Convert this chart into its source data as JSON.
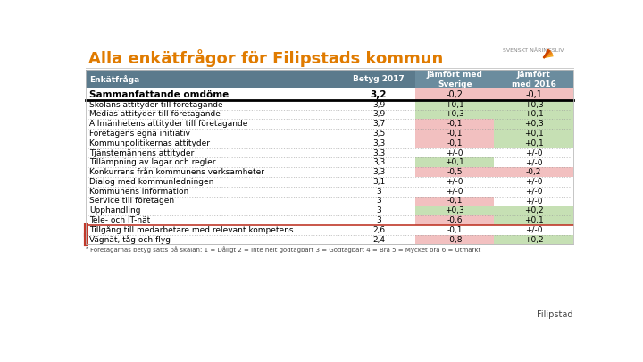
{
  "title": "Alla enkätfrågor för Filipstads kommun",
  "title_color": "#E07B00",
  "title_fontsize": 13,
  "header_bg": "#5B7A8C",
  "col1_header": "Enkätfråga",
  "col2_header": "Betyg 2017",
  "col3_header": "Jämfört med\nSverige",
  "col4_header": "Jämfört\nmed 2016",
  "summary_row": {
    "label": "Sammanfattande omdöme",
    "val1": "3,2",
    "val2": "-0,2",
    "val3": "-0,1",
    "val2_color": "#F2C0C0",
    "val3_color": "#F2C0C0"
  },
  "rows": [
    {
      "label": "Skolans attityder till företagande",
      "val1": "3,9",
      "val2": "+0,1",
      "val3": "+0,3",
      "val2_color": "#C6E0B4",
      "val3_color": "#C6E0B4"
    },
    {
      "label": "Medias attityder till företagande",
      "val1": "3,9",
      "val2": "+0,3",
      "val3": "+0,1",
      "val2_color": "#C6E0B4",
      "val3_color": "#C6E0B4"
    },
    {
      "label": "Allmänhetens attityder till företagande",
      "val1": "3,7",
      "val2": "-0,1",
      "val3": "+0,3",
      "val2_color": "#F2C0C0",
      "val3_color": "#C6E0B4"
    },
    {
      "label": "Företagens egna initiativ",
      "val1": "3,5",
      "val2": "-0,1",
      "val3": "+0,1",
      "val2_color": "#F2C0C0",
      "val3_color": "#C6E0B4"
    },
    {
      "label": "Kommunpolitikernas attityder",
      "val1": "3,3",
      "val2": "-0,1",
      "val3": "+0,1",
      "val2_color": "#F2C0C0",
      "val3_color": "#C6E0B4"
    },
    {
      "label": "Tjänstemännens attityder",
      "val1": "3,3",
      "val2": "+/-0",
      "val3": "+/-0",
      "val2_color": "#FFFFFF",
      "val3_color": "#FFFFFF"
    },
    {
      "label": "Tillämpning av lagar och regler",
      "val1": "3,3",
      "val2": "+0,1",
      "val3": "+/-0",
      "val2_color": "#C6E0B4",
      "val3_color": "#FFFFFF"
    },
    {
      "label": "Konkurrens från kommunens verksamheter",
      "val1": "3,3",
      "val2": "-0,5",
      "val3": "-0,2",
      "val2_color": "#F2C0C0",
      "val3_color": "#F2C0C0"
    },
    {
      "label": "Dialog med kommunledningen",
      "val1": "3,1",
      "val2": "+/-0",
      "val3": "+/-0",
      "val2_color": "#FFFFFF",
      "val3_color": "#FFFFFF"
    },
    {
      "label": "Kommunens information",
      "val1": "3",
      "val2": "+/-0",
      "val3": "+/-0",
      "val2_color": "#FFFFFF",
      "val3_color": "#FFFFFF"
    },
    {
      "label": "Service till företagen",
      "val1": "3",
      "val2": "-0,1",
      "val3": "+/-0",
      "val2_color": "#F2C0C0",
      "val3_color": "#FFFFFF"
    },
    {
      "label": "Upphandling",
      "val1": "3",
      "val2": "+0,3",
      "val3": "+0,2",
      "val2_color": "#C6E0B4",
      "val3_color": "#C6E0B4"
    },
    {
      "label": "Tele- och IT-nät",
      "val1": "3",
      "val2": "-0,6",
      "val3": "+0,1",
      "val2_color": "#F2C0C0",
      "val3_color": "#C6E0B4"
    },
    {
      "label": "Tillgång till medarbetare med relevant kompetens",
      "val1": "2,6",
      "val2": "-0,1",
      "val3": "+/-0",
      "val2_color": "#FFFFFF",
      "val3_color": "#FFFFFF",
      "red_left": true
    },
    {
      "label": "Vägnät, tåg och flyg",
      "val1": "2,4",
      "val2": "-0,8",
      "val3": "+0,2",
      "val2_color": "#F2C0C0",
      "val3_color": "#C6E0B4",
      "red_left": true
    }
  ],
  "footnote": "⁶ Företagarnas betyg sätts på skalan: 1 = Dåligt 2 = Inte helt godtagbart 3 = Godtagbart 4 = Bra 5 = Mycket bra 6 = Utmärkt",
  "footer_label": "Filipstad",
  "bg_color": "#FFFFFF",
  "red_sep_color": "#C0392B",
  "dot_color": "#999999"
}
